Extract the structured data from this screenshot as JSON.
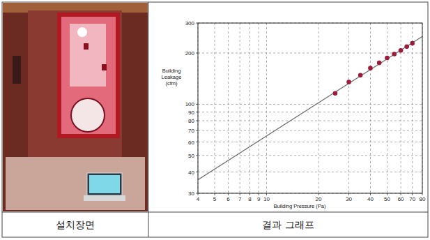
{
  "chart_data": {
    "type": "scatter",
    "x_label": "Building Pressure (Pa)",
    "y_label": "Building Leakage (cfm)",
    "log": true,
    "grid": true,
    "xlim": [
      4,
      80
    ],
    "ylim": [
      30,
      300
    ],
    "xticks": [
      4,
      5,
      6,
      7,
      8,
      9,
      10,
      20,
      30,
      40,
      50,
      60,
      70,
      80
    ],
    "yticks": [
      30,
      40,
      50,
      60,
      70,
      80,
      90,
      100,
      200,
      300
    ],
    "series": [
      {
        "type": "scatter",
        "color": "#9b1b3b",
        "marker": "circle",
        "x": [
          25,
          30,
          35,
          40,
          45,
          50,
          55,
          60,
          65,
          70
        ],
        "values": [
          116,
          135,
          148,
          163,
          175,
          187,
          197,
          207,
          218,
          228
        ]
      },
      {
        "type": "line",
        "color": "#707070",
        "line_style": "solid",
        "x": [
          4,
          80
        ],
        "values": [
          36,
          250
        ]
      }
    ]
  },
  "captions": [
    "설치장면",
    "결과 그래프"
  ]
}
